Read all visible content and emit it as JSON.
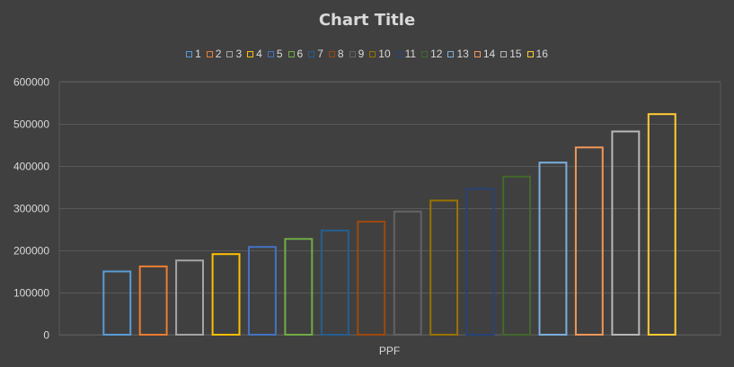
{
  "chart_data": {
    "type": "bar",
    "title": "Chart Title",
    "categories": [
      "PPF"
    ],
    "ylim": [
      0,
      600000
    ],
    "yticks": [
      "0",
      "100000",
      "200000",
      "300000",
      "400000",
      "500000",
      "600000"
    ],
    "grid": true,
    "legend_position": "top",
    "series": [
      {
        "name": "1",
        "values": [
          150000
        ],
        "color": "#5b9bd5"
      },
      {
        "name": "2",
        "values": [
          162000
        ],
        "color": "#ed7d31"
      },
      {
        "name": "3",
        "values": [
          176000
        ],
        "color": "#a5a5a5"
      },
      {
        "name": "4",
        "values": [
          191000
        ],
        "color": "#ffc000"
      },
      {
        "name": "5",
        "values": [
          208000
        ],
        "color": "#4472c4"
      },
      {
        "name": "6",
        "values": [
          227000
        ],
        "color": "#70ad47"
      },
      {
        "name": "7",
        "values": [
          247000
        ],
        "color": "#255e91"
      },
      {
        "name": "8",
        "values": [
          268000
        ],
        "color": "#9e480e"
      },
      {
        "name": "9",
        "values": [
          292000
        ],
        "color": "#636363"
      },
      {
        "name": "10",
        "values": [
          318000
        ],
        "color": "#997300"
      },
      {
        "name": "11",
        "values": [
          346000
        ],
        "color": "#264478"
      },
      {
        "name": "12",
        "values": [
          375000
        ],
        "color": "#43682b"
      },
      {
        "name": "13",
        "values": [
          408000
        ],
        "color": "#7cafdd"
      },
      {
        "name": "14",
        "values": [
          444000
        ],
        "color": "#f1975a"
      },
      {
        "name": "15",
        "values": [
          482000
        ],
        "color": "#b7b7b7"
      },
      {
        "name": "16",
        "values": [
          523000
        ],
        "color": "#ffcd33"
      }
    ]
  }
}
